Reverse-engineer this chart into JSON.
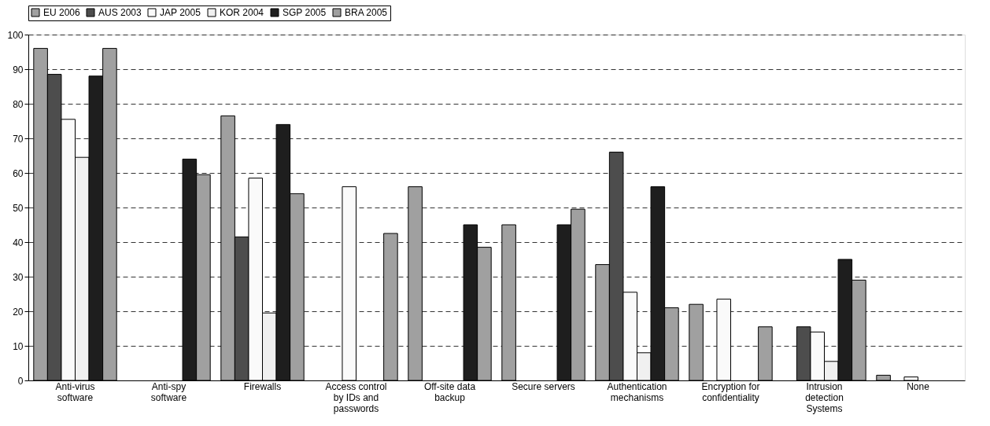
{
  "chart_data": {
    "type": "bar",
    "categories": [
      "Anti-virus\nsoftware",
      "Anti-spy\nsoftware",
      "Firewalls",
      "Access control\nby IDs and\npasswords",
      "Off-site data\nbackup",
      "Secure servers",
      "Authentication\nmechanisms",
      "Encryption for\nconfidentiality",
      "Intrusion\ndetection\nSystems",
      "None"
    ],
    "series": [
      {
        "name": "EU 2006",
        "color": "#a0a0a0",
        "values": [
          96,
          null,
          76.5,
          null,
          56,
          45,
          33.5,
          22,
          null,
          1.5
        ]
      },
      {
        "name": "AUS 2003",
        "color": "#4d4d4d",
        "values": [
          88.5,
          null,
          41.5,
          null,
          null,
          null,
          66,
          null,
          15.5,
          null
        ]
      },
      {
        "name": "JAP 2005",
        "color": "#fafafa",
        "values": [
          75.5,
          null,
          58.5,
          56,
          null,
          null,
          25.5,
          23.5,
          14,
          1
        ]
      },
      {
        "name": "KOR 2004",
        "color": "#f0f0f0",
        "values": [
          64.5,
          null,
          19.5,
          null,
          null,
          null,
          8,
          null,
          5.5,
          null
        ]
      },
      {
        "name": "SGP 2005",
        "color": "#1e1e1e",
        "values": [
          88,
          64,
          74,
          null,
          45,
          45,
          56,
          null,
          35,
          null
        ]
      },
      {
        "name": "BRA 2005",
        "color": "#a0a0a0",
        "values": [
          96,
          59.5,
          54,
          42.5,
          38.5,
          49.5,
          21,
          15.5,
          29,
          null
        ]
      }
    ],
    "ylim": [
      0,
      100
    ],
    "yticks": [
      0,
      10,
      20,
      30,
      40,
      50,
      60,
      70,
      80,
      90,
      100
    ],
    "grid": "y",
    "legend": "top"
  }
}
